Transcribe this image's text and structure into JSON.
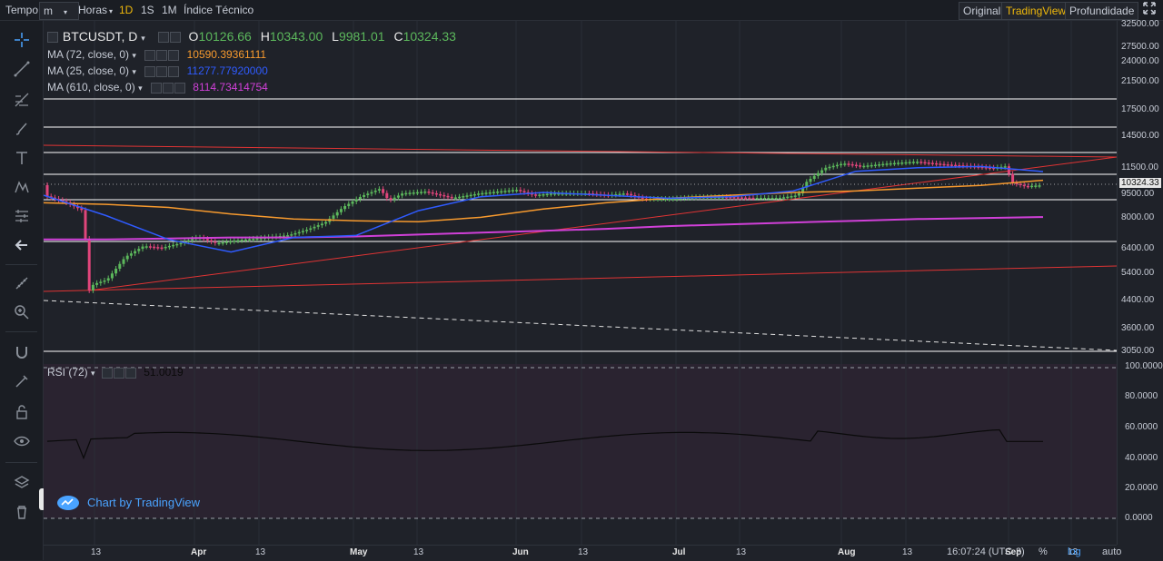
{
  "toolbar": {
    "items": [
      "Tempo",
      "m",
      "Horas",
      "1D",
      "1S",
      "1M",
      "Índice Técnico"
    ],
    "right": [
      "Original",
      "TradingView",
      "Profundidade"
    ]
  },
  "legend": {
    "symbol": "BTCUSDT, D",
    "o_label": "O",
    "o_val": "10126.66",
    "h_label": "H",
    "h_val": "10343.00",
    "l_label": "L",
    "l_val": "9981.01",
    "c_label": "C",
    "c_val": "10324.33",
    "ma1": "MA (72, close, 0)",
    "ma1_val": "10590.39361111",
    "ma2": "MA (25, close, 0)",
    "ma2_val": "11277.77920000",
    "ma3": "MA (610, close, 0)",
    "ma3_val": "8114.73414754",
    "rsi": "RSI (72)",
    "rsi_val": "51.0019"
  },
  "price_axis": [
    "32500.00",
    "27500.00",
    "24000.00",
    "21500.00",
    "17500.00",
    "14500.00",
    "11500.00",
    "10324.33",
    "9500.00",
    "8000.00",
    "6400.00",
    "5400.00",
    "4400.00",
    "3600.00",
    "3050.00"
  ],
  "rsi_axis": [
    "100.0000",
    "80.0000",
    "60.0000",
    "40.0000",
    "20.0000",
    "0.0000"
  ],
  "time_axis": [
    "13",
    "Apr",
    "13",
    "May",
    "13",
    "Jun",
    "13",
    "Jul",
    "13",
    "Aug",
    "13",
    "Sep",
    "13"
  ],
  "status": {
    "time": "16:07:24",
    "tz": "(UTC-3)",
    "pct": "%",
    "log": "log",
    "auto": "auto"
  },
  "branding": "Chart by TradingView",
  "colors": {
    "up": "#5cb85c",
    "down": "#e0457b",
    "ma72": "#f79a2e",
    "ma25": "#2f5bff",
    "ma610": "#d040d8",
    "accent": "#f0b90b",
    "rsi_bg": "#2a2330"
  },
  "chart_data": {
    "type": "line",
    "title": "BTCUSDT, D",
    "series": [
      {
        "name": "MA (72, close, 0)",
        "values": [
          9000,
          8900,
          8700,
          8300,
          8000,
          7900,
          7850,
          8100,
          8600,
          9000,
          9300,
          9500,
          9700,
          9800,
          10000,
          10200,
          10590
        ]
      },
      {
        "name": "MA (25, close, 0)",
        "values": [
          9500,
          8200,
          6900,
          6300,
          7000,
          7100,
          8500,
          9400,
          9700,
          9500,
          9300,
          9400,
          9800,
          11300,
          11600,
          11700,
          11278
        ]
      },
      {
        "name": "MA (610, close, 0)",
        "values": [
          6900,
          6900,
          6950,
          7000,
          7000,
          7050,
          7150,
          7250,
          7350,
          7450,
          7600,
          7700,
          7800,
          7900,
          8000,
          8050,
          8115
        ]
      }
    ],
    "ylim": [
      3050,
      32500
    ],
    "rsi": {
      "name": "RSI (72)",
      "last": 51.0019,
      "ylim": [
        0,
        100
      ]
    }
  }
}
